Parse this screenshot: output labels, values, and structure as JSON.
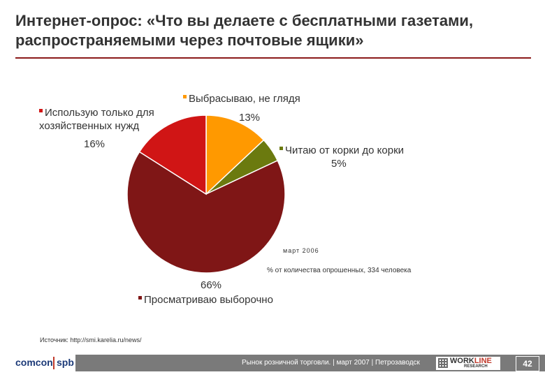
{
  "title": "Интернет-опрос: «Что вы делаете с бесплатными газетами, распространяемыми через почтовые ящики»",
  "chart_data": {
    "type": "pie",
    "slices": [
      {
        "label": "Выбрасываю, не глядя",
        "value": 13,
        "value_label": "13%",
        "color": "#ff9900"
      },
      {
        "label": "Читаю от корки до корки",
        "value": 5,
        "value_label": "5%",
        "color": "#6b7a0f"
      },
      {
        "label": "Просматриваю выборочно",
        "value": 66,
        "value_label": "66%",
        "color": "#7f1616"
      },
      {
        "label": "Использую только для хозяйственных нужд",
        "value": 16,
        "value_label": "16%",
        "color": "#d01515"
      }
    ],
    "note_date": "март 2006",
    "note": "% от количества опрошенных, 334 человека"
  },
  "source": "Источник: http://smi.karelia.ru/news/",
  "footer": {
    "logo_left_a": "comcon",
    "logo_left_b": "spb",
    "text": "Рынок розничной торговли. | март 2007 | Петрозаводск",
    "logo_right_a": "WORK",
    "logo_right_b": "LINE",
    "logo_right_sub": "RESEARCH",
    "page": "42"
  }
}
